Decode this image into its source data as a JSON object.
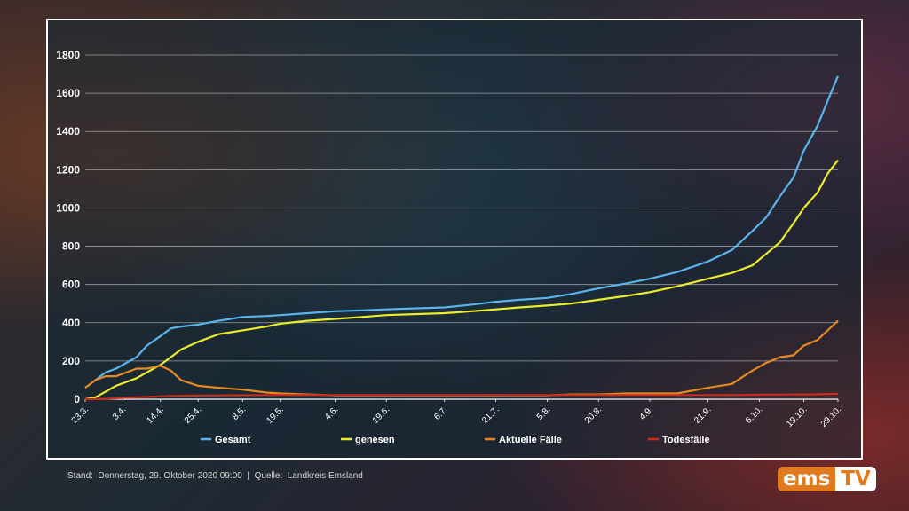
{
  "footer": {
    "stand_label": "Stand:",
    "stand_value": "Donnerstag, 29. Oktober 2020 09:00",
    "separator": "|",
    "source_label": "Quelle:",
    "source_value": "Landkreis Emsland"
  },
  "logo": {
    "part1": "ems",
    "part2": "TV"
  },
  "chart_data": {
    "type": "line",
    "title": "",
    "xlabel": "",
    "ylabel": "",
    "ylim": [
      0,
      1800
    ],
    "yticks": [
      0,
      200,
      400,
      600,
      800,
      1000,
      1200,
      1400,
      1600,
      1800
    ],
    "grid": true,
    "legend_position": "bottom",
    "x_dates": [
      "2020-03-23",
      "2020-03-26",
      "2020-03-29",
      "2020-04-01",
      "2020-04-04",
      "2020-04-07",
      "2020-04-10",
      "2020-04-14",
      "2020-04-17",
      "2020-04-20",
      "2020-04-25",
      "2020-05-01",
      "2020-05-08",
      "2020-05-15",
      "2020-05-19",
      "2020-05-27",
      "2020-06-04",
      "2020-06-12",
      "2020-06-19",
      "2020-06-27",
      "2020-07-06",
      "2020-07-14",
      "2020-07-21",
      "2020-07-28",
      "2020-08-05",
      "2020-08-12",
      "2020-08-20",
      "2020-08-28",
      "2020-09-04",
      "2020-09-12",
      "2020-09-21",
      "2020-09-28",
      "2020-10-04",
      "2020-10-08",
      "2020-10-12",
      "2020-10-16",
      "2020-10-19",
      "2020-10-23",
      "2020-10-26",
      "2020-10-29"
    ],
    "xtick_labels": [
      "23.3.",
      "3.4.",
      "14.4.",
      "25.4.",
      "8.5.",
      "19.5.",
      "4.6.",
      "19.6.",
      "6.7.",
      "21.7.",
      "5.8.",
      "20.8.",
      "4.9.",
      "21.9.",
      "6.10.",
      "19.10.",
      "29.10."
    ],
    "xtick_dates": [
      "2020-03-23",
      "2020-04-03",
      "2020-04-14",
      "2020-04-25",
      "2020-05-08",
      "2020-05-19",
      "2020-06-04",
      "2020-06-19",
      "2020-07-06",
      "2020-07-21",
      "2020-08-05",
      "2020-08-20",
      "2020-09-04",
      "2020-09-21",
      "2020-10-06",
      "2020-10-19",
      "2020-10-29"
    ],
    "series": [
      {
        "name": "Gesamt",
        "color": "#5ab4ea",
        "values": [
          60,
          100,
          140,
          160,
          190,
          220,
          280,
          330,
          370,
          380,
          390,
          410,
          430,
          435,
          440,
          450,
          460,
          465,
          470,
          475,
          480,
          495,
          510,
          520,
          530,
          550,
          580,
          605,
          630,
          665,
          720,
          780,
          880,
          950,
          1060,
          1160,
          1300,
          1430,
          1560,
          1690
        ]
      },
      {
        "name": "genesen",
        "color": "#ecec2a",
        "values": [
          0,
          10,
          40,
          70,
          90,
          110,
          140,
          180,
          220,
          260,
          300,
          340,
          360,
          380,
          395,
          410,
          420,
          430,
          440,
          445,
          450,
          460,
          470,
          480,
          490,
          500,
          520,
          540,
          560,
          590,
          630,
          660,
          700,
          760,
          820,
          920,
          1000,
          1080,
          1180,
          1250
        ]
      },
      {
        "name": "Aktuelle Fälle",
        "color": "#e38a22",
        "values": [
          60,
          100,
          120,
          120,
          140,
          160,
          160,
          175,
          150,
          100,
          70,
          60,
          50,
          35,
          30,
          25,
          20,
          20,
          20,
          20,
          20,
          20,
          20,
          20,
          20,
          25,
          25,
          30,
          30,
          30,
          60,
          80,
          150,
          190,
          220,
          230,
          280,
          310,
          360,
          410
        ]
      },
      {
        "name": "Todesfälle",
        "color": "#c62b1c",
        "values": [
          0,
          0,
          2,
          5,
          8,
          10,
          12,
          15,
          17,
          18,
          19,
          20,
          21,
          22,
          22,
          22,
          22,
          22,
          22,
          22,
          22,
          22,
          22,
          22,
          22,
          22,
          22,
          22,
          22,
          22,
          22,
          22,
          23,
          24,
          24,
          25,
          25,
          26,
          27,
          28
        ]
      }
    ]
  }
}
